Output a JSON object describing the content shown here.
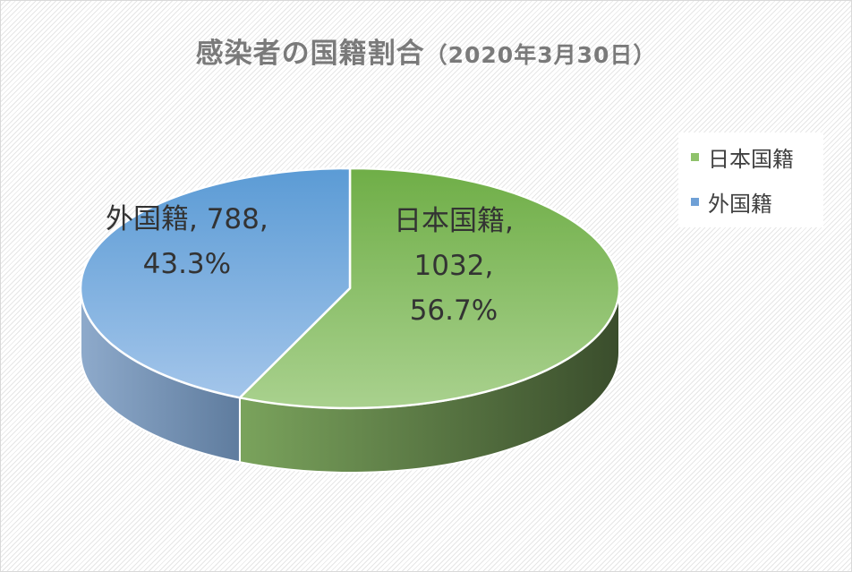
{
  "chart_data": {
    "type": "pie",
    "title": "感染者の国籍割合",
    "subtitle": "（2020年3月30日）",
    "categories": [
      "日本国籍",
      "外国籍"
    ],
    "values": [
      1032,
      788
    ],
    "percentages": [
      "56.7%",
      "43.3%"
    ],
    "colors": [
      "#8fc26b",
      "#6fa0d6"
    ],
    "legend_position": "right",
    "data_labels": [
      {
        "line1": "日本国籍,",
        "line2": "1032,",
        "line3": "56.7%"
      },
      {
        "line1": "外国籍, 788,",
        "line2": "43.3%"
      }
    ]
  },
  "legend": {
    "items": [
      {
        "label": "日本国籍",
        "color": "#8fc26b"
      },
      {
        "label": "外国籍",
        "color": "#6fa0d6"
      }
    ]
  }
}
